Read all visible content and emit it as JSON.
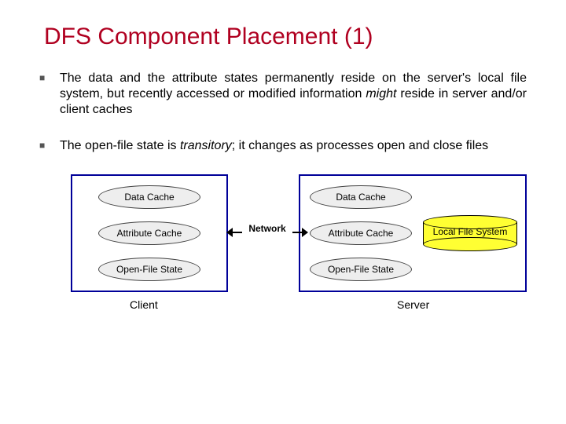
{
  "title": "DFS Component Placement (1)",
  "bullets": [
    {
      "pre": "The data and the attribute states permanently reside on the server's local file system, but recently accessed or modified information ",
      "em": "might",
      "post": " reside in server and/or client caches"
    },
    {
      "pre": "The open-file state is ",
      "em": "transitory",
      "post": "; it changes as processes open and close files"
    }
  ],
  "diagram": {
    "client_box_border": "#000099",
    "server_box_border": "#000099",
    "ellipse_fill": "#eeeeee",
    "ellipse_border": "#444444",
    "cylinder_fill": "#ffff33",
    "cylinder_border": "#000000",
    "client": {
      "label": "Client",
      "items": [
        "Data Cache",
        "Attribute Cache",
        "Open-File State"
      ]
    },
    "server": {
      "label": "Server",
      "items": [
        "Data Cache",
        "Attribute Cache",
        "Open-File State"
      ],
      "storage_label": "Local File System"
    },
    "connector_label": "Network",
    "fontsize_title": 30,
    "fontsize_body": 16,
    "fontsize_ellipse": 12,
    "fontsize_caption": 14,
    "title_color": "#b00020",
    "background": "#ffffff"
  }
}
